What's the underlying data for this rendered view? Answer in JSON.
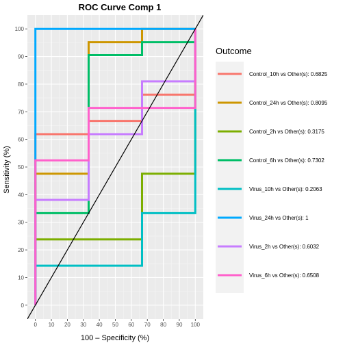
{
  "chart_data": {
    "type": "line",
    "title": "ROC Curve Comp 1",
    "xlabel": "100 – Specificity (%)",
    "ylabel": "Sensitivity (%)",
    "xlim": [
      0,
      100
    ],
    "ylim": [
      0,
      100
    ],
    "x_ticks": [
      0,
      10,
      20,
      30,
      40,
      50,
      60,
      70,
      80,
      90,
      100
    ],
    "y_ticks": [
      0,
      10,
      20,
      30,
      40,
      50,
      60,
      70,
      80,
      90,
      100
    ],
    "grid": true,
    "legend_position": "right",
    "legend_title": "Outcome",
    "reference_line": "diagonal",
    "series": [
      {
        "name": "Control_10h vs Other(s): 0.6825",
        "color": "#F8766D",
        "points": [
          [
            0,
            0
          ],
          [
            0,
            61.9
          ],
          [
            33.3,
            61.9
          ],
          [
            33.3,
            66.7
          ],
          [
            66.7,
            66.7
          ],
          [
            66.7,
            76.2
          ],
          [
            100,
            76.2
          ],
          [
            100,
            100
          ]
        ]
      },
      {
        "name": "Control_24h vs Other(s): 0.8095",
        "color": "#CD9600",
        "points": [
          [
            0,
            0
          ],
          [
            0,
            47.6
          ],
          [
            33.3,
            47.6
          ],
          [
            33.3,
            95.2
          ],
          [
            66.7,
            95.2
          ],
          [
            66.7,
            100
          ],
          [
            100,
            100
          ]
        ]
      },
      {
        "name": "Control_2h vs Other(s): 0.3175",
        "color": "#7CAE00",
        "points": [
          [
            0,
            0
          ],
          [
            0,
            23.8
          ],
          [
            66.7,
            23.8
          ],
          [
            66.7,
            47.6
          ],
          [
            100,
            47.6
          ],
          [
            100,
            100
          ]
        ]
      },
      {
        "name": "Control_6h vs Other(s): 0.7302",
        "color": "#00BE67",
        "points": [
          [
            0,
            0
          ],
          [
            0,
            33.3
          ],
          [
            33.3,
            33.3
          ],
          [
            33.3,
            90.5
          ],
          [
            66.7,
            90.5
          ],
          [
            66.7,
            95.2
          ],
          [
            100,
            95.2
          ],
          [
            100,
            100
          ]
        ]
      },
      {
        "name": "Virus_10h vs Other(s): 0.2063",
        "color": "#00BFC4",
        "points": [
          [
            0,
            0
          ],
          [
            0,
            14.3
          ],
          [
            66.7,
            14.3
          ],
          [
            66.7,
            33.3
          ],
          [
            100,
            33.3
          ],
          [
            100,
            100
          ]
        ]
      },
      {
        "name": "Virus_24h vs Other(s): 1",
        "color": "#00A9FF",
        "points": [
          [
            0,
            0
          ],
          [
            0,
            100
          ],
          [
            100,
            100
          ]
        ]
      },
      {
        "name": "Virus_2h vs Other(s): 0.6032",
        "color": "#C77CFF",
        "points": [
          [
            0,
            0
          ],
          [
            0,
            38.1
          ],
          [
            33.3,
            38.1
          ],
          [
            33.3,
            61.9
          ],
          [
            66.7,
            61.9
          ],
          [
            66.7,
            81
          ],
          [
            100,
            81
          ],
          [
            100,
            100
          ]
        ]
      },
      {
        "name": "Virus_6h vs Other(s): 0.6508",
        "color": "#FF61CC",
        "points": [
          [
            0,
            0
          ],
          [
            0,
            52.4
          ],
          [
            33.3,
            52.4
          ],
          [
            33.3,
            71.4
          ],
          [
            100,
            71.4
          ],
          [
            100,
            100
          ]
        ]
      }
    ]
  }
}
